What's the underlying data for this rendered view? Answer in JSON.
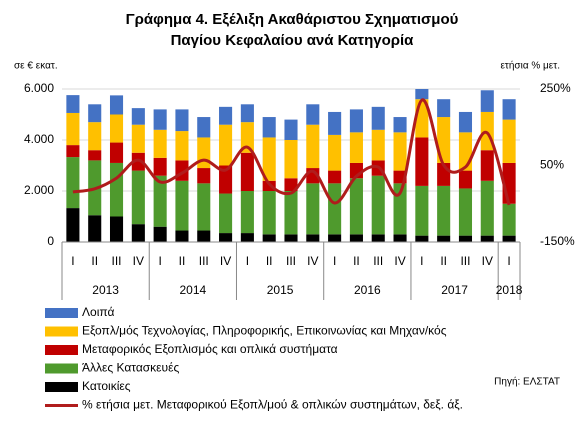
{
  "chart_data": {
    "type": "stacked-bar-line",
    "title": [
      "Γράφημα 4. Εξέλιξη Ακαθάριστου Σχηματισμού",
      "Παγίου Κεφαλαίου ανά Κατηγορία"
    ],
    "y_label": "σε € εκατ.",
    "y2_label": "ετήσια % μετ.",
    "source": "Πηγή: ΕΛΣΤΑΤ",
    "categories": [
      "I",
      "II",
      "III",
      "IV",
      "I",
      "II",
      "III",
      "IV",
      "I",
      "II",
      "III",
      "IV",
      "I",
      "II",
      "III",
      "IV",
      "I",
      "II",
      "III",
      "IV",
      "I"
    ],
    "year_labels": [
      "2013",
      "2014",
      "2015",
      "2016",
      "2017",
      "2018"
    ],
    "ylim": [
      0,
      6000
    ],
    "yticks": [
      0,
      {
        "value": 2000,
        "label": "2.000"
      },
      {
        "value": 4000,
        "label": "4.000"
      },
      {
        "value": 6000,
        "label": "6.000"
      }
    ],
    "y2lim": [
      -150,
      250
    ],
    "y2ticks": [
      {
        "value": -150,
        "label": "-150%"
      },
      {
        "value": 50,
        "label": "50%"
      },
      {
        "value": 250,
        "label": "250%"
      }
    ],
    "grid": true,
    "series": [
      {
        "name": "Κατοικίες",
        "color": "#000000",
        "values": [
          1330,
          1050,
          1000,
          700,
          600,
          450,
          450,
          350,
          350,
          300,
          300,
          300,
          300,
          300,
          300,
          300,
          250,
          250,
          250,
          250,
          250
        ]
      },
      {
        "name": "Άλλες Κατασκευές",
        "color": "#4f9a2d",
        "values": [
          2000,
          2150,
          2100,
          2100,
          2000,
          1950,
          1850,
          1550,
          1650,
          1700,
          1700,
          2000,
          2000,
          2200,
          2300,
          2000,
          1950,
          1950,
          1850,
          2150,
          1250
        ]
      },
      {
        "name": "Μεταφορικός Εξοπλισμός και οπλικά συστήματα",
        "color": "#c00000",
        "values": [
          470,
          400,
          800,
          700,
          700,
          800,
          600,
          1100,
          1500,
          400,
          500,
          600,
          500,
          600,
          600,
          500,
          1900,
          900,
          700,
          1200,
          1600
        ]
      },
      {
        "name": "Εξοπλ/μός Τεχνολογίας, Πληροφορικής, Επικοινωνίας και Μηχαν/κός",
        "color": "#ffc000",
        "values": [
          1260,
          1100,
          1100,
          1100,
          1100,
          1150,
          1200,
          1600,
          1200,
          1700,
          1500,
          1700,
          1400,
          1200,
          1200,
          1500,
          1500,
          1800,
          1500,
          1500,
          1700
        ]
      },
      {
        "name": "Λοιπά",
        "color": "#4472c4",
        "values": [
          700,
          700,
          750,
          650,
          800,
          850,
          800,
          700,
          700,
          800,
          800,
          800,
          900,
          900,
          900,
          600,
          400,
          700,
          800,
          850,
          800
        ]
      },
      {
        "name": "% ετήσια μετ. Μεταφορικού Εξοπλ/μού & οπλικών συστημάτων, δεξ. άξ.",
        "color": "#b01c1c",
        "axis": "y2",
        "values": [
          -19,
          -11,
          17,
          64,
          7,
          30,
          64,
          38,
          98,
          2,
          -22,
          35,
          -48,
          22,
          46,
          -22,
          221,
          51,
          46,
          135,
          -53
        ]
      }
    ]
  }
}
